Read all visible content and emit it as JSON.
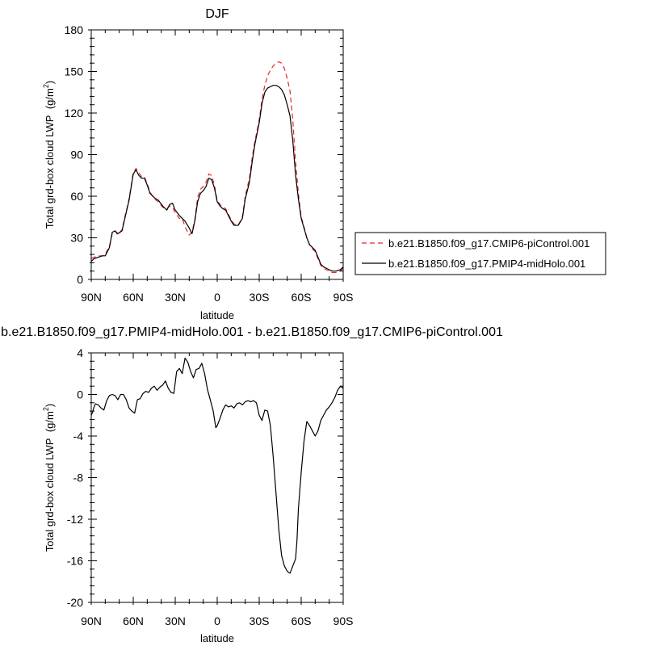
{
  "chart_data": [
    {
      "type": "line",
      "title": "DJF",
      "xlabel": "latitude",
      "ylabel": "Total grd-box cloud LWP",
      "ylabel_unit_base": "(g/m",
      "ylabel_unit_exp": "2",
      "ylabel_unit_close": ")",
      "xlim": [
        90,
        -90
      ],
      "ylim": [
        0,
        180
      ],
      "x_ticks": [
        {
          "value": 90,
          "label": "90N"
        },
        {
          "value": 60,
          "label": "60N"
        },
        {
          "value": 30,
          "label": "30N"
        },
        {
          "value": 0,
          "label": "0"
        },
        {
          "value": -30,
          "label": "30S"
        },
        {
          "value": -60,
          "label": "60S"
        },
        {
          "value": -90,
          "label": "90S"
        }
      ],
      "y_ticks": [
        0,
        30,
        60,
        90,
        120,
        150,
        180
      ],
      "legend_position": "right",
      "series": [
        {
          "name": "b.e21.B1850.f09_g17.CMIP6-piControl.001",
          "color": "#e8262a",
          "dash": "dashed",
          "x": [
            90,
            88,
            85,
            82,
            80,
            77,
            75,
            73,
            71,
            68,
            66,
            63,
            60,
            58,
            56,
            54,
            52,
            50,
            48,
            45,
            42,
            39,
            36,
            34,
            32,
            30,
            27,
            25,
            23,
            20,
            18,
            16,
            14,
            12,
            10,
            8,
            6,
            4,
            2,
            0,
            -2,
            -4,
            -6,
            -8,
            -10,
            -12,
            -15,
            -18,
            -20,
            -23,
            -25,
            -27,
            -30,
            -32,
            -34,
            -36,
            -38,
            -40,
            -42,
            -44,
            -46,
            -48,
            -50,
            -52,
            -54,
            -56,
            -58,
            -60,
            -62,
            -64,
            -66,
            -68,
            -70,
            -72,
            -74,
            -76,
            -78,
            -80,
            -82,
            -85,
            -88,
            -90
          ],
          "y": [
            15,
            16,
            17,
            17,
            18,
            24,
            33,
            35,
            32,
            36,
            45,
            58,
            77,
            80,
            77,
            74,
            74,
            69,
            63,
            58,
            56,
            52,
            51,
            53,
            52,
            48,
            44,
            44,
            38,
            32,
            34,
            43,
            59,
            65,
            67,
            70,
            76,
            75,
            68,
            57,
            54,
            52,
            51,
            47,
            43,
            40,
            39,
            45,
            60,
            73,
            88,
            100,
            115,
            130,
            140,
            147,
            151,
            154,
            156,
            157,
            156,
            152,
            145,
            136,
            115,
            85,
            62,
            45,
            38,
            30,
            25,
            22,
            20,
            15,
            10,
            8,
            7,
            6,
            5,
            5,
            6,
            8
          ],
          "x_shift_note": ""
        },
        {
          "name": "b.e21.B1850.f09_g17.PMIP4-midHolo.001",
          "color": "#000000",
          "dash": "solid",
          "x": [
            90,
            88,
            85,
            82,
            80,
            77,
            75,
            73,
            71,
            68,
            66,
            63,
            60,
            58,
            56,
            54,
            52,
            50,
            48,
            45,
            42,
            39,
            36,
            34,
            32,
            30,
            27,
            25,
            23,
            20,
            18,
            16,
            14,
            12,
            10,
            8,
            6,
            4,
            2,
            0,
            -2,
            -4,
            -6,
            -8,
            -10,
            -12,
            -15,
            -18,
            -20,
            -23,
            -25,
            -27,
            -30,
            -32,
            -34,
            -36,
            -38,
            -40,
            -42,
            -44,
            -46,
            -48,
            -50,
            -52,
            -54,
            -56,
            -58,
            -60,
            -62,
            -64,
            -66,
            -68,
            -70,
            -72,
            -74,
            -76,
            -78,
            -80,
            -82,
            -85,
            -88,
            -90
          ],
          "y": [
            13,
            15,
            16,
            17,
            17,
            23,
            34,
            35,
            33,
            35,
            44,
            57,
            76,
            79,
            75,
            73,
            73,
            68,
            62,
            59,
            57,
            53,
            50,
            54,
            55,
            50,
            46,
            44,
            42,
            37,
            33,
            42,
            56,
            62,
            64,
            67,
            73,
            72,
            66,
            56,
            53,
            51,
            50,
            46,
            42,
            39,
            39,
            44,
            58,
            70,
            85,
            98,
            113,
            127,
            135,
            138,
            139,
            140,
            140,
            139,
            137,
            133,
            126,
            118,
            100,
            75,
            58,
            44,
            37,
            30,
            25,
            23,
            21,
            16,
            11,
            9,
            8,
            7,
            6,
            6,
            7,
            9
          ]
        }
      ]
    },
    {
      "type": "line",
      "title": "b.e21.B1850.f09_g17.PMIP4-midHolo.001 - b.e21.B1850.f09_g17.CMIP6-piControl.001",
      "xlabel": "latitude",
      "ylabel": "Total grd-box cloud LWP",
      "ylabel_unit_base": "(g/m",
      "ylabel_unit_exp": "2",
      "ylabel_unit_close": ")",
      "xlim": [
        90,
        -90
      ],
      "ylim": [
        -20,
        4
      ],
      "x_ticks": [
        {
          "value": 90,
          "label": "90N"
        },
        {
          "value": 60,
          "label": "60N"
        },
        {
          "value": 30,
          "label": "30N"
        },
        {
          "value": 0,
          "label": "0"
        },
        {
          "value": -30,
          "label": "30S"
        },
        {
          "value": -60,
          "label": "60S"
        },
        {
          "value": -90,
          "label": "90S"
        }
      ],
      "y_ticks": [
        -20,
        -16,
        -12,
        -8,
        -4,
        0,
        4
      ],
      "series": [
        {
          "name": "",
          "color": "#000000",
          "dash": "solid",
          "x": [
            90,
            89,
            88,
            87,
            85,
            83,
            81,
            79,
            77,
            75,
            73,
            71,
            69,
            67,
            65,
            63,
            61,
            59,
            57,
            55,
            53,
            51,
            49,
            47,
            45,
            43,
            41,
            39,
            37,
            35,
            33,
            31,
            29,
            27,
            25,
            23,
            21,
            19,
            17,
            15,
            13,
            11,
            9,
            7,
            5,
            3,
            1,
            0,
            -2,
            -4,
            -6,
            -8,
            -10,
            -12,
            -14,
            -16,
            -18,
            -20,
            -22,
            -24,
            -26,
            -28,
            -30,
            -32,
            -34,
            -36,
            -38,
            -40,
            -42,
            -44,
            -46,
            -48,
            -50,
            -52,
            -54,
            -56,
            -57,
            -58,
            -60,
            -62,
            -64,
            -66,
            -68,
            -70,
            -72,
            -74,
            -76,
            -78,
            -80,
            -82,
            -84,
            -86,
            -88,
            -90
          ],
          "y": [
            -2.0,
            -1.7,
            -1.2,
            -0.9,
            -1.0,
            -1.3,
            -1.5,
            -0.6,
            -0.1,
            0.0,
            -0.1,
            -0.5,
            0.0,
            0.0,
            -0.5,
            -1.3,
            -1.6,
            -1.8,
            -0.5,
            -0.4,
            0.1,
            0.3,
            0.2,
            0.6,
            0.8,
            0.4,
            0.7,
            0.9,
            1.3,
            0.6,
            0.2,
            0.1,
            2.2,
            2.5,
            2.0,
            3.5,
            3.1,
            2.2,
            1.6,
            2.4,
            2.5,
            3.0,
            2.0,
            0.5,
            -0.5,
            -1.5,
            -3.2,
            -3.0,
            -2.3,
            -1.5,
            -1.0,
            -1.2,
            -1.1,
            -1.3,
            -0.9,
            -0.8,
            -1.0,
            -0.7,
            -0.6,
            -0.7,
            -0.6,
            -0.8,
            -2.0,
            -2.5,
            -1.5,
            -1.6,
            -3.0,
            -6.0,
            -9.5,
            -13.0,
            -15.5,
            -16.5,
            -17.0,
            -17.2,
            -16.5,
            -15.8,
            -14.0,
            -11.0,
            -7.5,
            -4.5,
            -2.6,
            -3.0,
            -3.5,
            -4.0,
            -3.5,
            -2.5,
            -2.0,
            -1.5,
            -1.2,
            -0.8,
            -0.3,
            0.4,
            0.8,
            0.6
          ],
          "note_bottom": ""
        }
      ]
    }
  ]
}
